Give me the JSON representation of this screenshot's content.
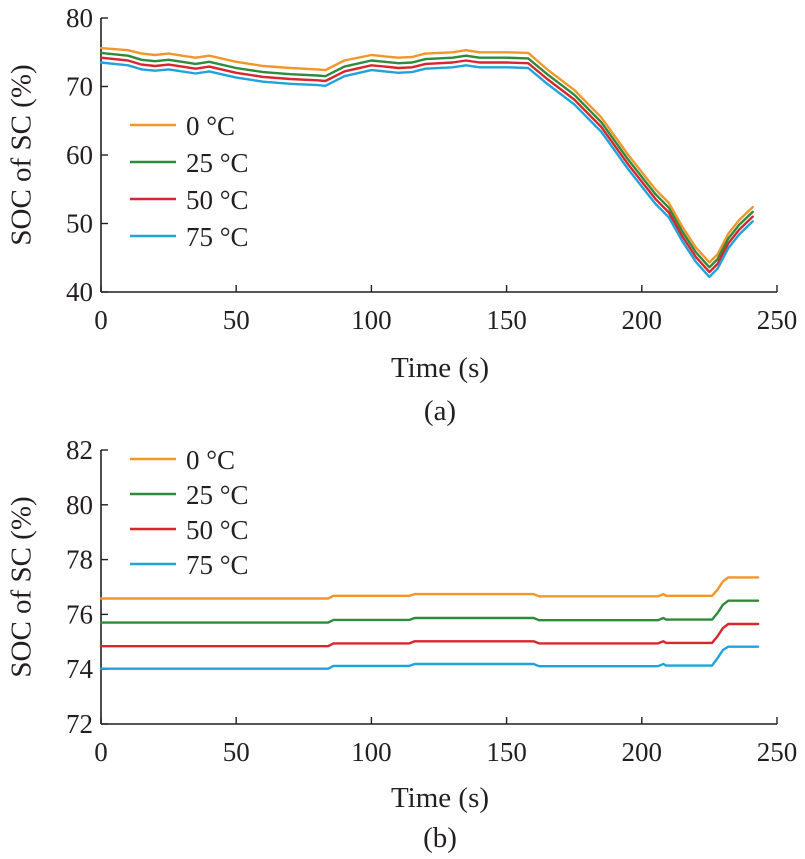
{
  "colors": {
    "0C": "#f0962a",
    "25C": "#2e8b3a",
    "50C": "#d9262e",
    "75C": "#1fa3dc",
    "axis": "#231f20"
  },
  "chart_data": [
    {
      "type": "line",
      "caption": "(a)",
      "xlabel": "Time (s)",
      "ylabel": "SOC of SC (%)",
      "xlim": [
        0,
        250
      ],
      "ylim": [
        40,
        80
      ],
      "xticks": [
        0,
        50,
        100,
        150,
        200,
        250
      ],
      "yticks": [
        40,
        50,
        60,
        70,
        80
      ],
      "legend_position": "left",
      "series": [
        {
          "name": "0 °C",
          "color": "#f0962a",
          "x": [
            0,
            10,
            15,
            20,
            25,
            30,
            35,
            40,
            50,
            60,
            70,
            80,
            83,
            90,
            100,
            105,
            110,
            115,
            120,
            130,
            135,
            140,
            150,
            158,
            165,
            175,
            185,
            195,
            205,
            210,
            215,
            220,
            225,
            228,
            232,
            236,
            241
          ],
          "y": [
            75.6,
            75.3,
            74.8,
            74.6,
            74.8,
            74.5,
            74.2,
            74.5,
            73.6,
            73.0,
            72.7,
            72.5,
            72.4,
            73.8,
            74.6,
            74.4,
            74.2,
            74.3,
            74.8,
            75.0,
            75.3,
            75.0,
            75.0,
            74.9,
            72.5,
            69.5,
            65.5,
            60.0,
            55.0,
            53.0,
            49.5,
            46.5,
            44.3,
            45.5,
            48.5,
            50.5,
            52.4
          ]
        },
        {
          "name": "25 °C",
          "color": "#2e8b3a",
          "x": [
            0,
            10,
            15,
            20,
            25,
            30,
            35,
            40,
            50,
            60,
            70,
            80,
            83,
            90,
            100,
            105,
            110,
            115,
            120,
            130,
            135,
            140,
            150,
            158,
            165,
            175,
            185,
            195,
            205,
            210,
            215,
            220,
            225,
            228,
            232,
            236,
            241
          ],
          "y": [
            74.9,
            74.5,
            73.9,
            73.7,
            73.9,
            73.6,
            73.3,
            73.6,
            72.7,
            72.1,
            71.8,
            71.6,
            71.5,
            72.9,
            73.8,
            73.6,
            73.4,
            73.5,
            74.0,
            74.2,
            74.5,
            74.2,
            74.2,
            74.1,
            71.8,
            68.8,
            64.8,
            59.3,
            54.3,
            52.3,
            48.8,
            45.8,
            43.6,
            44.8,
            47.8,
            49.8,
            51.7
          ]
        },
        {
          "name": "50 °C",
          "color": "#d9262e",
          "x": [
            0,
            10,
            15,
            20,
            25,
            30,
            35,
            40,
            50,
            60,
            70,
            80,
            83,
            90,
            100,
            105,
            110,
            115,
            120,
            130,
            135,
            140,
            150,
            158,
            165,
            175,
            185,
            195,
            205,
            210,
            215,
            220,
            225,
            228,
            232,
            236,
            241
          ],
          "y": [
            74.2,
            73.8,
            73.2,
            73.0,
            73.2,
            72.9,
            72.6,
            72.9,
            72.0,
            71.4,
            71.1,
            70.9,
            70.8,
            72.2,
            73.1,
            72.9,
            72.7,
            72.8,
            73.3,
            73.5,
            73.8,
            73.5,
            73.5,
            73.4,
            71.1,
            68.1,
            64.1,
            58.6,
            53.6,
            51.6,
            48.1,
            45.1,
            42.9,
            44.1,
            47.1,
            49.1,
            51.0
          ]
        },
        {
          "name": "75 °C",
          "color": "#1fa3dc",
          "x": [
            0,
            10,
            15,
            20,
            25,
            30,
            35,
            40,
            50,
            60,
            70,
            80,
            83,
            90,
            100,
            105,
            110,
            115,
            120,
            130,
            135,
            140,
            150,
            158,
            165,
            175,
            185,
            195,
            205,
            210,
            215,
            220,
            225,
            228,
            232,
            236,
            241
          ],
          "y": [
            73.5,
            73.1,
            72.5,
            72.3,
            72.5,
            72.2,
            71.9,
            72.2,
            71.3,
            70.7,
            70.4,
            70.2,
            70.1,
            71.5,
            72.4,
            72.2,
            72.0,
            72.1,
            72.6,
            72.8,
            73.1,
            72.8,
            72.8,
            72.7,
            70.4,
            67.4,
            63.4,
            57.9,
            52.9,
            50.9,
            47.4,
            44.4,
            42.2,
            43.4,
            46.4,
            48.4,
            50.3
          ]
        }
      ]
    },
    {
      "type": "line",
      "caption": "(b)",
      "xlabel": "Time (s)",
      "ylabel": "SOC of SC (%)",
      "xlim": [
        0,
        250
      ],
      "ylim": [
        72,
        82
      ],
      "xticks": [
        0,
        50,
        100,
        150,
        200,
        250
      ],
      "yticks": [
        72,
        74,
        76,
        78,
        80,
        82
      ],
      "legend_position": "top-left",
      "series": [
        {
          "name": "0 °C",
          "color": "#f0962a",
          "x": [
            0,
            84,
            86,
            114,
            116,
            160,
            162,
            206,
            208,
            209,
            226,
            228,
            230,
            232,
            243
          ],
          "y": [
            76.58,
            76.58,
            76.68,
            76.68,
            76.74,
            76.74,
            76.66,
            76.66,
            76.74,
            76.68,
            76.68,
            76.9,
            77.2,
            77.35,
            77.35
          ]
        },
        {
          "name": "25 °C",
          "color": "#2e8b3a",
          "x": [
            0,
            84,
            86,
            114,
            116,
            160,
            162,
            206,
            208,
            209,
            226,
            228,
            230,
            232,
            243
          ],
          "y": [
            75.7,
            75.7,
            75.8,
            75.8,
            75.87,
            75.87,
            75.79,
            75.79,
            75.87,
            75.81,
            75.81,
            76.05,
            76.35,
            76.5,
            76.5
          ]
        },
        {
          "name": "50 °C",
          "color": "#d9262e",
          "x": [
            0,
            84,
            86,
            114,
            116,
            160,
            162,
            206,
            208,
            209,
            226,
            228,
            230,
            232,
            243
          ],
          "y": [
            74.84,
            74.84,
            74.94,
            74.94,
            75.02,
            75.02,
            74.94,
            74.94,
            75.02,
            74.96,
            74.96,
            75.2,
            75.5,
            75.65,
            75.65
          ]
        },
        {
          "name": "75 °C",
          "color": "#1fa3dc",
          "x": [
            0,
            84,
            86,
            114,
            116,
            160,
            162,
            206,
            208,
            209,
            226,
            228,
            230,
            232,
            243
          ],
          "y": [
            74.02,
            74.02,
            74.12,
            74.12,
            74.19,
            74.19,
            74.11,
            74.11,
            74.19,
            74.13,
            74.13,
            74.4,
            74.7,
            74.82,
            74.82
          ]
        }
      ]
    }
  ]
}
